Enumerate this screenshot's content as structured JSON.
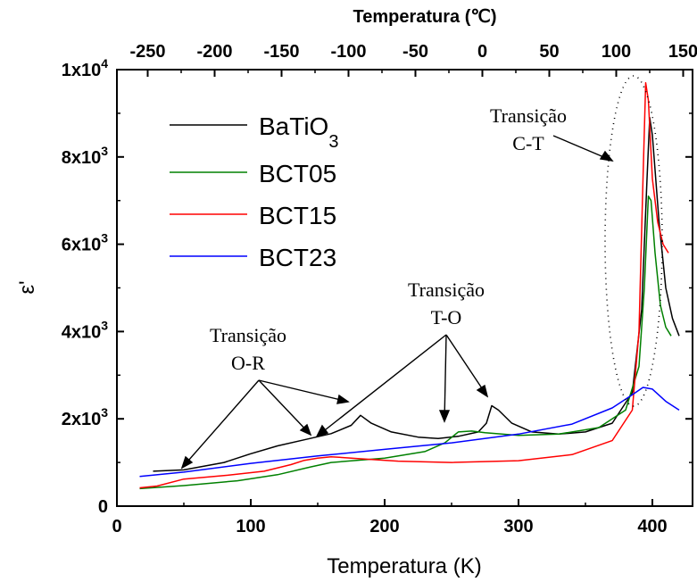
{
  "chart_data": {
    "type": "line",
    "xlabel": "Temperatura (K)",
    "x2label": "Temperatura (℃)",
    "ylabel": "ε'",
    "xlim": [
      0,
      430
    ],
    "x2lim": [
      -273,
      157
    ],
    "ylim": [
      0,
      10000
    ],
    "grid": false,
    "legend_position": "top-left",
    "x_ticks": [
      0,
      100,
      200,
      300,
      400
    ],
    "x_tick_labels": [
      "0",
      "100",
      "200",
      "300",
      "400"
    ],
    "x2_ticks": [
      -250,
      -200,
      -150,
      -100,
      -50,
      0,
      50,
      100,
      150
    ],
    "x2_tick_labels": [
      "-250",
      "-200",
      "-150",
      "-100",
      "-50",
      "0",
      "50",
      "100",
      "150"
    ],
    "y_ticks": [
      0,
      2000,
      4000,
      6000,
      8000,
      10000
    ],
    "y_tick_labels": [
      {
        "base": "0",
        "exp": ""
      },
      {
        "base": "2x10",
        "exp": "3"
      },
      {
        "base": "4x10",
        "exp": "3"
      },
      {
        "base": "6x10",
        "exp": "3"
      },
      {
        "base": "8x10",
        "exp": "3"
      },
      {
        "base": "1x10",
        "exp": "4"
      }
    ],
    "series": [
      {
        "name": "BaTiO",
        "name_sub": "3",
        "color": "#000000",
        "x": [
          27,
          50,
          80,
          100,
          120,
          140,
          160,
          175,
          182,
          190,
          205,
          225,
          240,
          255,
          270,
          276,
          280,
          285,
          295,
          310,
          330,
          350,
          370,
          385,
          392,
          396,
          398,
          400,
          405,
          410,
          415,
          420
        ],
        "y": [
          800,
          830,
          1000,
          1200,
          1380,
          1520,
          1660,
          1850,
          2080,
          1900,
          1700,
          1580,
          1550,
          1600,
          1700,
          1900,
          2300,
          2200,
          1900,
          1700,
          1650,
          1700,
          1900,
          2600,
          4500,
          7500,
          8900,
          8500,
          6500,
          5000,
          4300,
          3900
        ]
      },
      {
        "name": "BCT05",
        "color": "#008000",
        "x": [
          17,
          50,
          90,
          120,
          145,
          160,
          200,
          230,
          245,
          255,
          265,
          275,
          300,
          330,
          360,
          380,
          390,
          394,
          397,
          399,
          402,
          406,
          410,
          414
        ],
        "y": [
          400,
          470,
          580,
          720,
          900,
          1000,
          1100,
          1250,
          1450,
          1700,
          1720,
          1680,
          1620,
          1650,
          1800,
          2200,
          3200,
          5000,
          7100,
          7000,
          5800,
          4600,
          4100,
          3900
        ]
      },
      {
        "name": "BCT15",
        "color": "#ff0000",
        "x": [
          17,
          30,
          50,
          80,
          110,
          130,
          140,
          150,
          160,
          180,
          210,
          250,
          300,
          340,
          370,
          385,
          390,
          393,
          395,
          397,
          400,
          404,
          408,
          412
        ],
        "y": [
          420,
          460,
          620,
          700,
          800,
          950,
          1050,
          1100,
          1130,
          1090,
          1030,
          1000,
          1040,
          1180,
          1500,
          2200,
          4000,
          7500,
          9700,
          9300,
          7500,
          6500,
          6000,
          5800
        ]
      },
      {
        "name": "BCT23",
        "color": "#0000ff",
        "x": [
          17,
          50,
          100,
          150,
          200,
          250,
          300,
          340,
          370,
          385,
          393,
          400,
          410,
          420
        ],
        "y": [
          680,
          780,
          980,
          1150,
          1300,
          1450,
          1650,
          1880,
          2250,
          2550,
          2720,
          2680,
          2400,
          2200
        ]
      }
    ],
    "annotations": [
      {
        "lines": [
          "Transição",
          "C-T"
        ]
      },
      {
        "lines": [
          "Transição",
          "T-O"
        ]
      },
      {
        "lines": [
          "Transição",
          "O-R"
        ]
      }
    ]
  }
}
